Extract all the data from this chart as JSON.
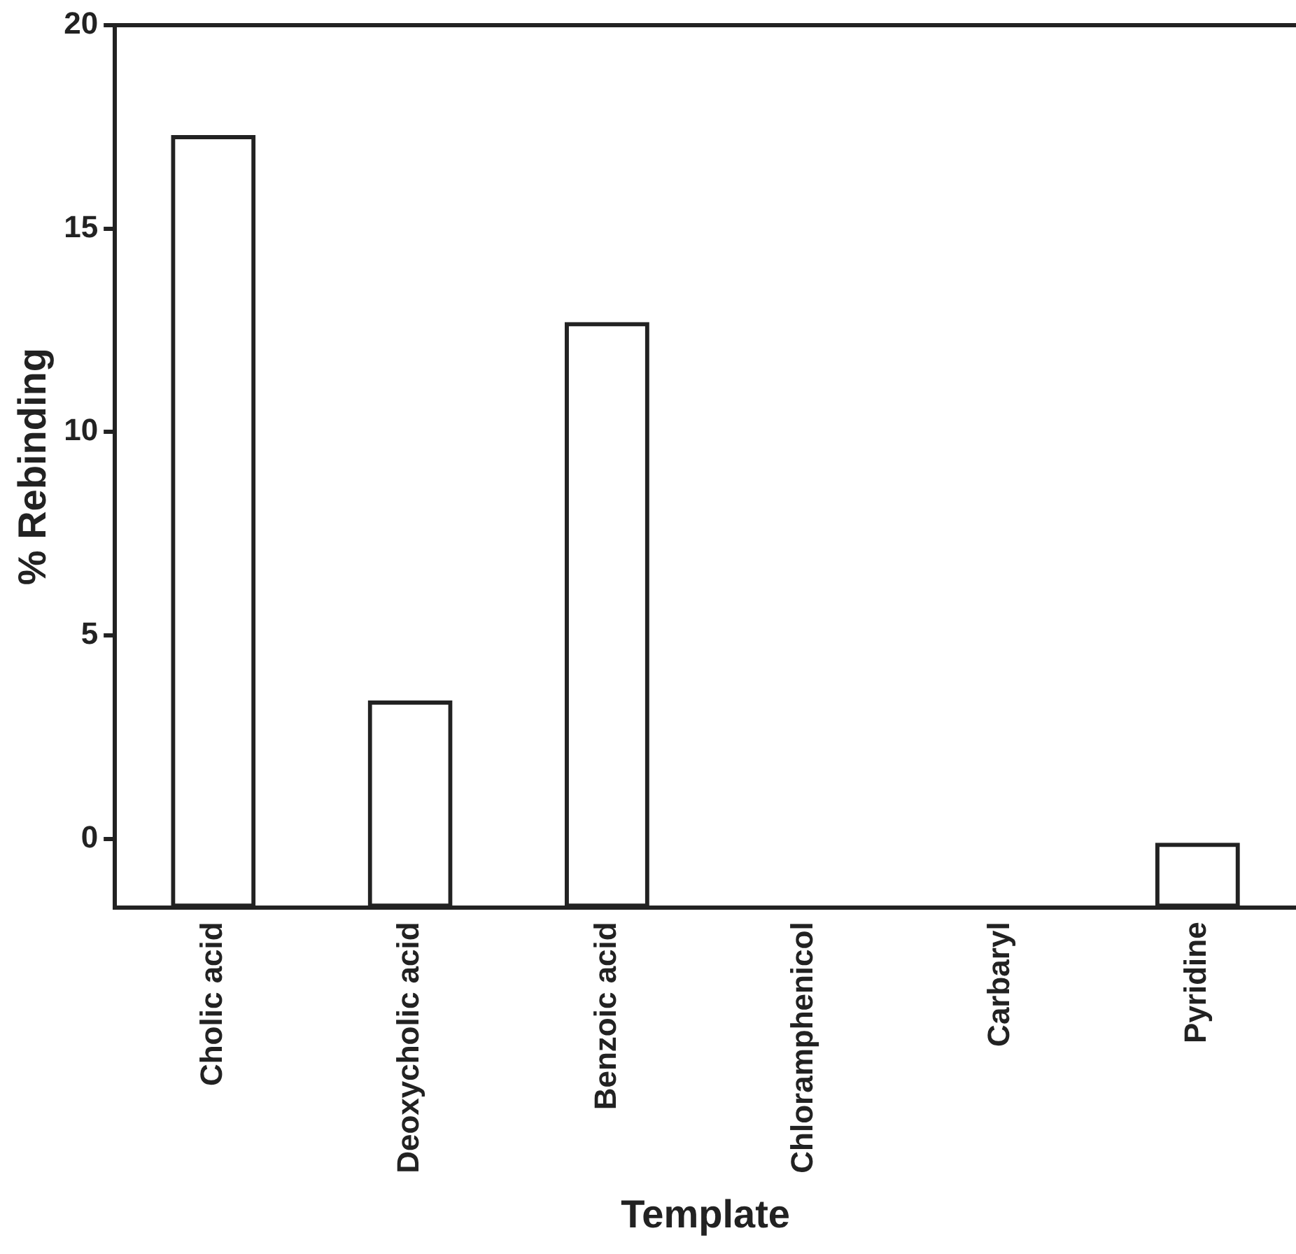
{
  "chart_data": {
    "type": "bar",
    "xlabel": "Template",
    "ylabel": "% Rebinding",
    "categories": [
      "Cholic acid",
      "Deoxycholic acid",
      "Benzoic acid",
      "Chloramphenicol",
      "Carbaryl",
      "Pyridine"
    ],
    "base": [
      -1.7,
      -1.7,
      -1.7,
      null,
      null,
      -1.7
    ],
    "values": [
      19.0,
      5.1,
      14.4,
      null,
      null,
      1.6
    ],
    "color": "#222222",
    "ylim": [
      -1.7,
      20
    ],
    "yticks": [
      0,
      5,
      10,
      15,
      20
    ],
    "grid": false,
    "legend": false
  }
}
